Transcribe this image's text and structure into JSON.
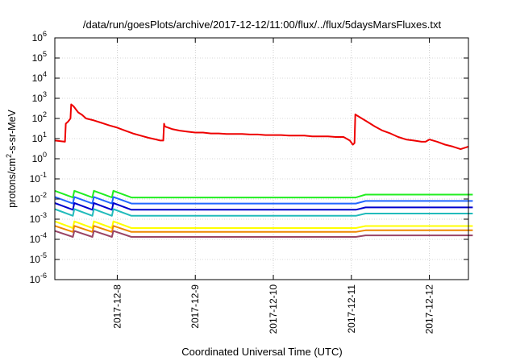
{
  "chart_data": {
    "type": "line",
    "title": "/data/run/goesPlots/archive/2017-12-12/11:00/flux/../flux/5daysMarsFluxes.txt",
    "xlabel": "Coordinated Universal Time (UTC)",
    "ylabel": {
      "pre": "protons/cm",
      "sup": "2",
      "post": "-s-sr-MeV"
    },
    "yscale": "log",
    "ylim_exp": [
      -6,
      6
    ],
    "ytick_base": "10",
    "yticks_exp": [
      -6,
      -5,
      -4,
      -3,
      -2,
      -1,
      0,
      1,
      2,
      3,
      4,
      5,
      6
    ],
    "xlim_days": [
      7.2,
      12.5
    ],
    "xticks": [
      {
        "label": "2017-12-8",
        "day": 8
      },
      {
        "label": "2017-12-9",
        "day": 9
      },
      {
        "label": "2017-12-10",
        "day": 10
      },
      {
        "label": "2017-12-11",
        "day": 11
      },
      {
        "label": "2017-12-12",
        "day": 12
      }
    ],
    "grid": true,
    "legend": "none",
    "series": [
      {
        "color": "#ee0000",
        "x": [
          7.2,
          7.33,
          7.34,
          7.37,
          7.4,
          7.41,
          7.44,
          7.5,
          7.55,
          7.6,
          7.7,
          7.8,
          7.9,
          8.0,
          8.1,
          8.2,
          8.3,
          8.4,
          8.5,
          8.55,
          8.59,
          8.6,
          8.61,
          8.7,
          8.8,
          8.9,
          9.0,
          9.1,
          9.2,
          9.3,
          9.4,
          9.5,
          9.6,
          9.7,
          9.8,
          9.9,
          10.0,
          10.1,
          10.2,
          10.3,
          10.4,
          10.5,
          10.6,
          10.7,
          10.8,
          10.9,
          10.98,
          11.02,
          11.04,
          11.05,
          11.06,
          11.1,
          11.2,
          11.3,
          11.4,
          11.5,
          11.6,
          11.7,
          11.8,
          11.9,
          11.95,
          12.0,
          12.1,
          12.2,
          12.3,
          12.4,
          12.5
        ],
        "y": [
          8,
          7,
          55,
          70,
          100,
          500,
          400,
          200,
          150,
          100,
          80,
          60,
          45,
          35,
          25,
          18,
          14,
          11,
          9,
          8,
          8,
          55,
          40,
          30,
          25,
          22,
          20,
          20,
          18,
          18,
          17,
          17,
          17,
          16,
          16,
          15,
          15,
          15,
          14,
          14,
          14,
          13,
          13,
          13,
          12,
          12,
          8,
          5,
          6,
          160,
          150,
          120,
          70,
          40,
          25,
          18,
          12,
          9,
          8,
          7,
          7,
          9,
          7,
          5,
          4,
          3,
          4
        ]
      },
      {
        "color": "#22ee22",
        "base": 0.017,
        "amp": 0.5,
        "day": 11.05,
        "boost": 1.4
      },
      {
        "color": "#2266ff",
        "base": 0.0085,
        "amp": 0.5,
        "day": 11.05,
        "boost": 1.35
      },
      {
        "color": "#0000cc",
        "base": 0.0042,
        "amp": 0.5,
        "day": 11.05,
        "boost": 1.3
      },
      {
        "color": "#22bbbb",
        "base": 0.0021,
        "amp": 0.5,
        "day": 11.05,
        "boost": 1.3
      },
      {
        "color": "#ffff00",
        "base": 0.00052,
        "amp": 0.5,
        "day": 11.05,
        "boost": 1.25
      },
      {
        "color": "#ee8800",
        "base": 0.00032,
        "amp": 0.45,
        "day": 11.05,
        "boost": 1.2
      },
      {
        "color": "#994466",
        "base": 0.00018,
        "amp": 0.45,
        "day": 11.05,
        "boost": 1.2
      }
    ]
  }
}
